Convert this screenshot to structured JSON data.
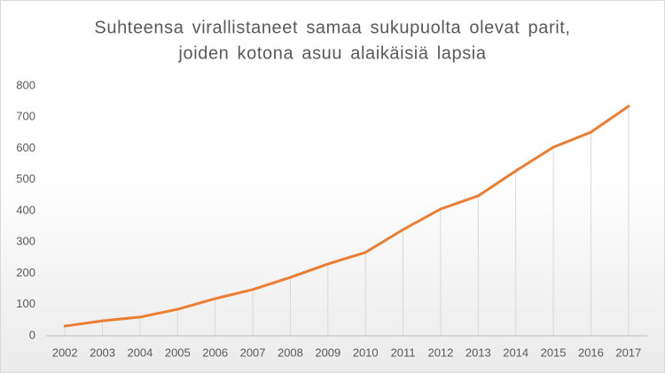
{
  "chart_data": {
    "type": "line",
    "title": [
      "Suhteensa virallistaneet samaa sukupuolta olevat parit,",
      "joiden kotona asuu alaikäisiä lapsia"
    ],
    "categories": [
      "2002",
      "2003",
      "2004",
      "2005",
      "2006",
      "2007",
      "2008",
      "2009",
      "2010",
      "2011",
      "2012",
      "2013",
      "2014",
      "2015",
      "2016",
      "2017"
    ],
    "values": [
      31,
      48,
      60,
      85,
      119,
      148,
      187,
      230,
      267,
      340,
      406,
      448,
      528,
      604,
      652,
      735
    ],
    "color": "#ed7d31",
    "ylim": [
      0,
      800
    ],
    "yticks": [
      0,
      100,
      200,
      300,
      400,
      500,
      600,
      700,
      800
    ],
    "drop_lines": true
  }
}
